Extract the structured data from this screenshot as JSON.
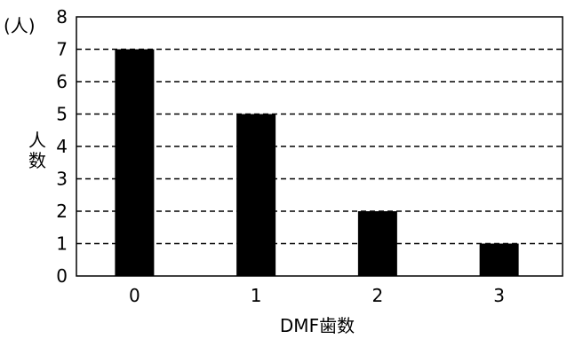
{
  "chart_data": {
    "type": "bar",
    "categories": [
      "0",
      "1",
      "2",
      "3"
    ],
    "values": [
      7,
      5,
      2,
      1
    ],
    "xlabel": "DMF歯数",
    "ylabel": "人数",
    "y_unit": "(人)",
    "ylim": [
      0,
      8
    ],
    "yticks": [
      "0",
      "1",
      "2",
      "3",
      "4",
      "5",
      "6",
      "7",
      "8"
    ],
    "grid": "horizontal-dashed",
    "bar_color": "#000000"
  }
}
